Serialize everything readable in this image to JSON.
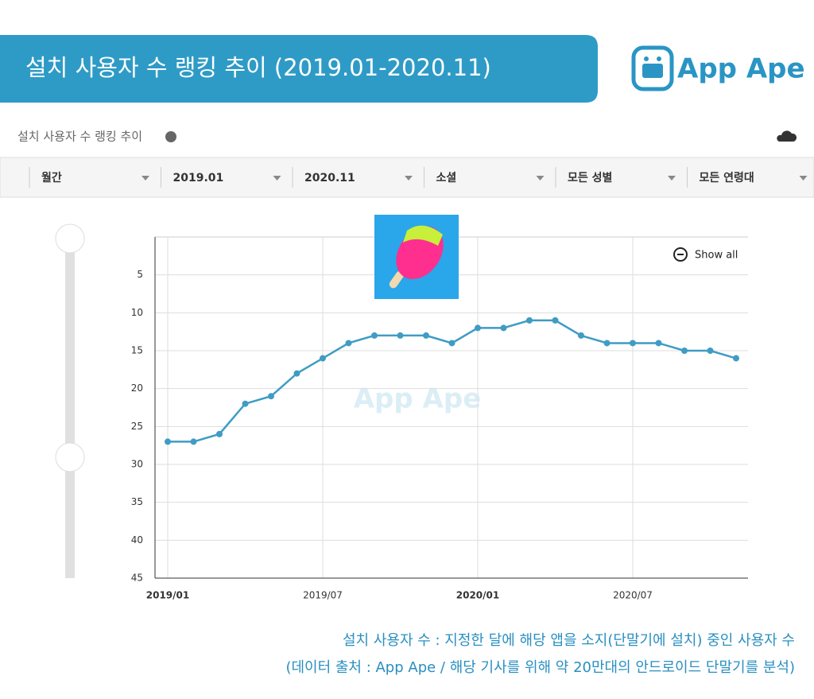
{
  "header": {
    "title": "설치 사용자 수 랭킹 추이 (2019.01-2020.11)",
    "brand": "App Ape"
  },
  "panel": {
    "title": "설치 사용자 수 랭킹 추이",
    "filters": [
      "월간",
      "2019.01",
      "2020.11",
      "소셜",
      "모든 성별",
      "모든 연령대"
    ],
    "show_all": "Show all",
    "watermark": "App Ape"
  },
  "chart_data": {
    "type": "line",
    "categories": [
      "2019/01",
      null,
      null,
      null,
      null,
      null,
      "2019/07",
      null,
      null,
      null,
      null,
      null,
      "2020/01",
      null,
      null,
      null,
      null,
      null,
      "2020/07",
      null,
      null,
      null,
      null
    ],
    "series": [
      {
        "name": "설치 사용자 수 랭킹",
        "color": "#3f9cc4",
        "values": [
          27,
          27,
          26,
          22,
          21,
          18,
          16,
          14,
          13,
          13,
          13,
          14,
          12,
          12,
          11,
          11,
          13,
          14,
          14,
          14,
          15,
          15,
          16
        ]
      }
    ],
    "ylim": [
      0,
      45
    ],
    "yticks": [
      5,
      10,
      15,
      20,
      25,
      30,
      35,
      40,
      45
    ],
    "y_inverted": true,
    "grid": true
  },
  "notes": [
    "설치 사용자 수 : 지정한 달에 해당 앱을 소지(단말기에 설치) 중인 사용자 수",
    "(데이터 출처 : App Ape / 해당 기사를 위해 약 20만대의 안드로이드 단말기를 분석)"
  ]
}
